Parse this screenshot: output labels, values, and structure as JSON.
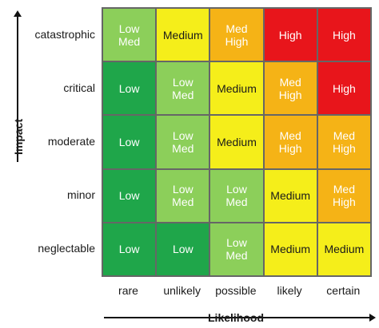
{
  "axes": {
    "y_title": "Impact",
    "x_title": "Likelihood",
    "impact_levels": [
      "catastrophic",
      "critical",
      "moderate",
      "minor",
      "neglectable"
    ],
    "likelihood_levels": [
      "rare",
      "unlikely",
      "possible",
      "likely",
      "certain"
    ]
  },
  "legend_colors": {
    "Low": "#1fa64a",
    "Low\nMed": "#8ccf5a",
    "Medium": "#f5ee1a",
    "Med\nHigh": "#f5b316",
    "High": "#e8151b"
  },
  "text_colors": {
    "Low": "#ffffff",
    "Low\nMed": "#ffffff",
    "Medium": "#1a1a1a",
    "Med\nHigh": "#ffffff",
    "High": "#ffffff"
  },
  "matrix": [
    [
      "Low\nMed",
      "Medium",
      "Med\nHigh",
      "High",
      "High"
    ],
    [
      "Low",
      "Low\nMed",
      "Medium",
      "Med\nHigh",
      "High"
    ],
    [
      "Low",
      "Low\nMed",
      "Medium",
      "Med\nHigh",
      "Med\nHigh"
    ],
    [
      "Low",
      "Low\nMed",
      "Low\nMed",
      "Medium",
      "Med\nHigh"
    ],
    [
      "Low",
      "Low",
      "Low\nMed",
      "Medium",
      "Medium"
    ]
  ]
}
